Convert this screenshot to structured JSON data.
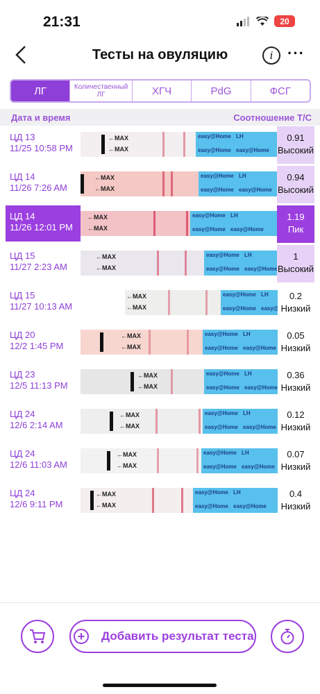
{
  "status": {
    "time": "21:31",
    "battery": "20"
  },
  "nav": {
    "back_icon": "chevron-left-icon",
    "title": "Тесты на овуляцию",
    "info_icon": "info-icon",
    "more_icon": "more-icon"
  },
  "tabs": [
    {
      "label": "ЛГ",
      "active": true
    },
    {
      "label": "Количественный ЛГ",
      "active": false
    },
    {
      "label": "ХГЧ",
      "active": false
    },
    {
      "label": "PdG",
      "active": false
    },
    {
      "label": "ФСГ",
      "active": false
    }
  ],
  "table": {
    "header_left": "Дата и время",
    "header_right": "Соотношение Т/С",
    "strip_labels": {
      "max": "MAX",
      "lh": "LH",
      "brand": "easy@Home"
    },
    "rows": [
      {
        "cd": "ЦД 13",
        "datetime": "11/25 10:58 PM",
        "value": "0.91",
        "level": "Высокий",
        "kind": "high",
        "highlight": false
      },
      {
        "cd": "ЦД 14",
        "datetime": "11/26 7:26 AM",
        "value": "0.94",
        "level": "Высокий",
        "kind": "high",
        "highlight": false
      },
      {
        "cd": "ЦД 14",
        "datetime": "11/26 12:01 PM",
        "value": "1.19",
        "level": "Пик",
        "kind": "peak",
        "highlight": true
      },
      {
        "cd": "ЦД 15",
        "datetime": "11/27 2:23 AM",
        "value": "1",
        "level": "Высокий",
        "kind": "high",
        "highlight": false
      },
      {
        "cd": "ЦД 15",
        "datetime": "11/27 10:13 AM",
        "value": "0.2",
        "level": "Низкий",
        "kind": "low",
        "highlight": false
      },
      {
        "cd": "ЦД 20",
        "datetime": "12/2 1:45 PM",
        "value": "0.05",
        "level": "Низкий",
        "kind": "low",
        "highlight": false
      },
      {
        "cd": "ЦД 23",
        "datetime": "12/5 11:13 PM",
        "value": "0.36",
        "level": "Низкий",
        "kind": "low",
        "highlight": false
      },
      {
        "cd": "ЦД 24",
        "datetime": "12/6 2:14 AM",
        "value": "0.12",
        "level": "Низкий",
        "kind": "low",
        "highlight": false
      },
      {
        "cd": "ЦД 24",
        "datetime": "12/6 11:03 AM",
        "value": "0.07",
        "level": "Низкий",
        "kind": "low",
        "highlight": false
      },
      {
        "cd": "ЦД 24",
        "datetime": "12/6 9:11 PM",
        "value": "0.4",
        "level": "Низкий",
        "kind": "low",
        "highlight": false
      }
    ]
  },
  "bottom": {
    "add_label": "Добавить результат теста",
    "cart_icon": "cart-icon",
    "add_icon": "plus-circle-icon",
    "timer_icon": "timer-icon"
  },
  "colors": {
    "accent": "#9b3fe0",
    "high_bg": "#e7d2f7",
    "strip_blue": "#58c0ec",
    "test_line": "#d8506a"
  }
}
